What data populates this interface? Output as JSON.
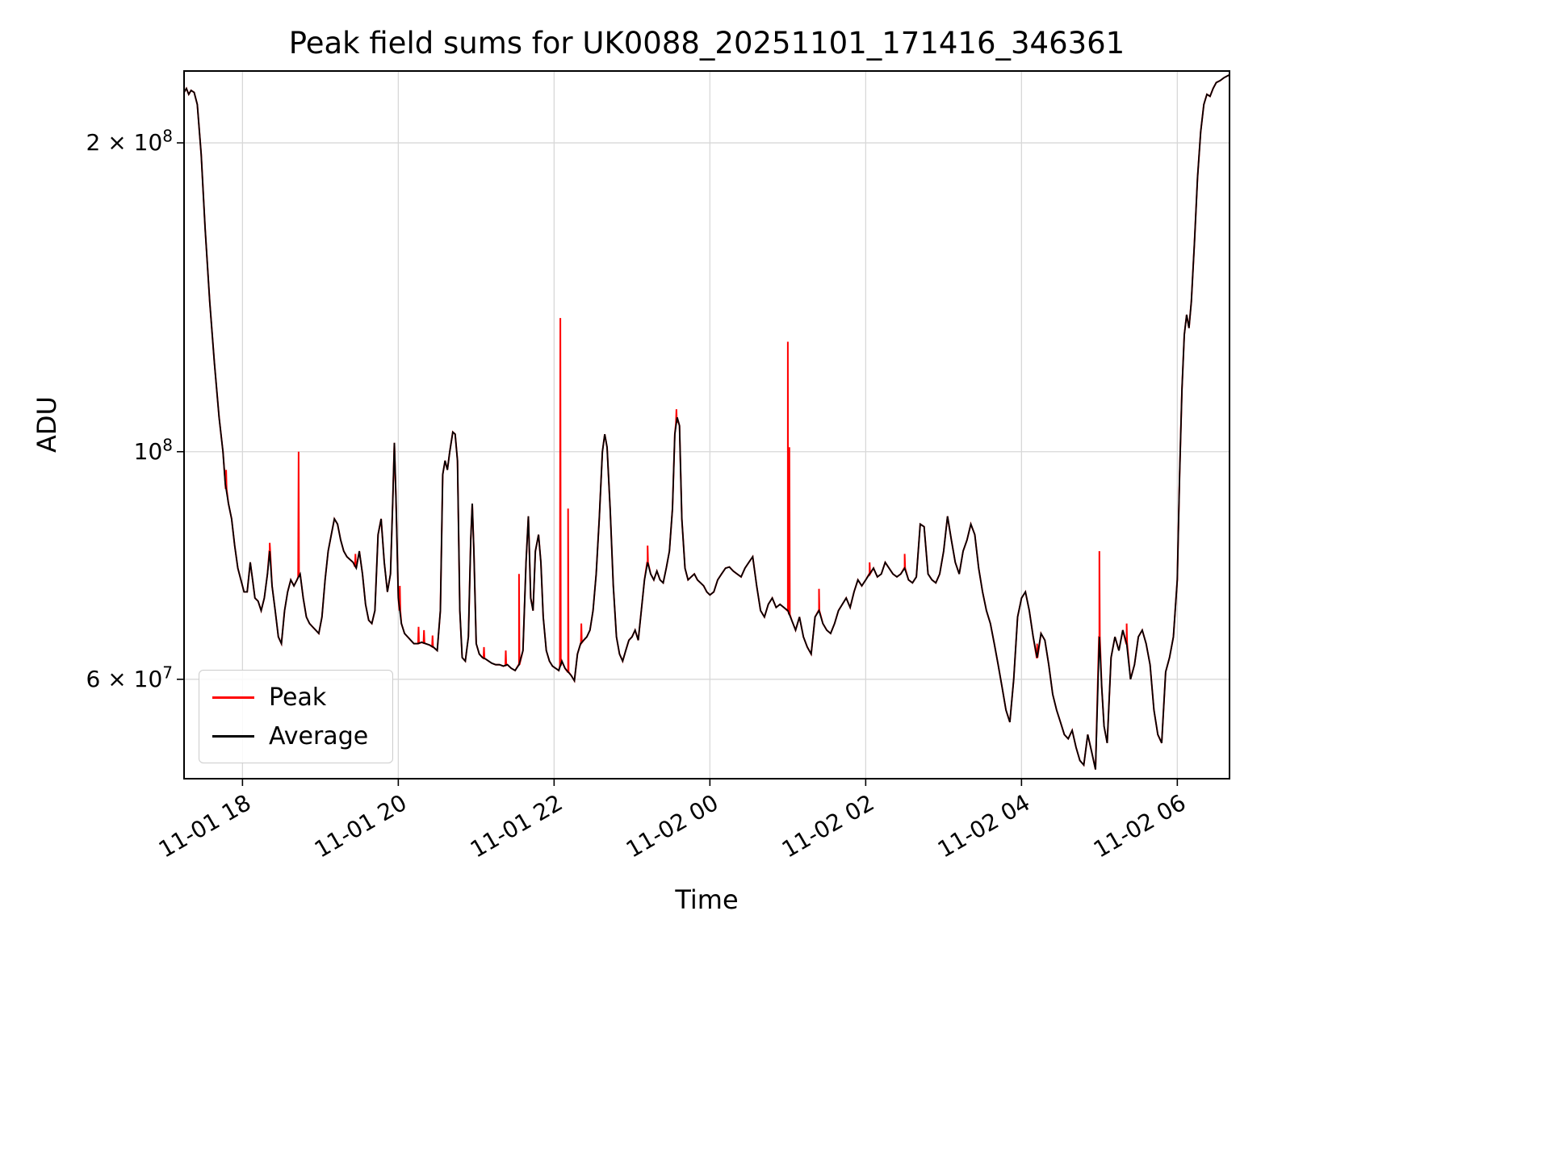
{
  "chart_data": {
    "type": "line",
    "title": "Peak field sums for UK0088_20251101_171416_346361",
    "xlabel": "Time",
    "ylabel": "ADU",
    "yscale": "log",
    "grid": true,
    "legend_position": "lower left",
    "value_scale": 10000000,
    "ylim": [
      4.8,
      23.5
    ],
    "xlim_hours": [
      17.25,
      30.67
    ],
    "colors": {
      "peak": "#ff0000",
      "average": "#000000",
      "grid": "#d8d8d8",
      "axis": "#000000"
    },
    "x_ticks": [
      {
        "hour": 18,
        "label": "11-01 18"
      },
      {
        "hour": 20,
        "label": "11-01 20"
      },
      {
        "hour": 22,
        "label": "11-01 22"
      },
      {
        "hour": 24,
        "label": "11-02 00"
      },
      {
        "hour": 26,
        "label": "11-02 02"
      },
      {
        "hour": 28,
        "label": "11-02 04"
      },
      {
        "hour": 30,
        "label": "11-02 06"
      }
    ],
    "y_ticks": [
      {
        "v": 20,
        "mantissa": "2 × 10",
        "exp": "8"
      },
      {
        "v": 10,
        "mantissa": "10",
        "exp": "8"
      },
      {
        "v": 6,
        "mantissa": "6 × 10",
        "exp": "7"
      }
    ],
    "legend": [
      {
        "name": "Peak",
        "color": "#ff0000"
      },
      {
        "name": "Average",
        "color": "#000000"
      }
    ],
    "series": {
      "average": [
        [
          17.25,
          22.4
        ],
        [
          17.28,
          22.6
        ],
        [
          17.31,
          22.3
        ],
        [
          17.34,
          22.5
        ],
        [
          17.38,
          22.4
        ],
        [
          17.42,
          21.8
        ],
        [
          17.47,
          19.5
        ],
        [
          17.52,
          16.5
        ],
        [
          17.58,
          14.0
        ],
        [
          17.64,
          12.2
        ],
        [
          17.7,
          10.8
        ],
        [
          17.75,
          10.0
        ],
        [
          17.78,
          9.3
        ],
        [
          17.82,
          8.9
        ],
        [
          17.86,
          8.6
        ],
        [
          17.9,
          8.1
        ],
        [
          17.94,
          7.7
        ],
        [
          17.98,
          7.5
        ],
        [
          18.02,
          7.3
        ],
        [
          18.06,
          7.3
        ],
        [
          18.1,
          7.8
        ],
        [
          18.13,
          7.5
        ],
        [
          18.16,
          7.2
        ],
        [
          18.2,
          7.15
        ],
        [
          18.24,
          7.0
        ],
        [
          18.28,
          7.2
        ],
        [
          18.32,
          7.6
        ],
        [
          18.35,
          8.0
        ],
        [
          18.38,
          7.4
        ],
        [
          18.42,
          7.0
        ],
        [
          18.46,
          6.6
        ],
        [
          18.5,
          6.5
        ],
        [
          18.54,
          7.0
        ],
        [
          18.58,
          7.3
        ],
        [
          18.62,
          7.5
        ],
        [
          18.66,
          7.4
        ],
        [
          18.7,
          7.5
        ],
        [
          18.74,
          7.6
        ],
        [
          18.78,
          7.2
        ],
        [
          18.82,
          6.9
        ],
        [
          18.86,
          6.8
        ],
        [
          18.9,
          6.75
        ],
        [
          18.94,
          6.7
        ],
        [
          18.98,
          6.65
        ],
        [
          19.02,
          6.9
        ],
        [
          19.06,
          7.5
        ],
        [
          19.1,
          8.0
        ],
        [
          19.14,
          8.3
        ],
        [
          19.18,
          8.6
        ],
        [
          19.22,
          8.5
        ],
        [
          19.26,
          8.2
        ],
        [
          19.3,
          8.0
        ],
        [
          19.34,
          7.9
        ],
        [
          19.38,
          7.85
        ],
        [
          19.42,
          7.8
        ],
        [
          19.46,
          7.7
        ],
        [
          19.5,
          8.0
        ],
        [
          19.54,
          7.6
        ],
        [
          19.58,
          7.1
        ],
        [
          19.62,
          6.85
        ],
        [
          19.66,
          6.8
        ],
        [
          19.7,
          7.0
        ],
        [
          19.74,
          8.3
        ],
        [
          19.78,
          8.6
        ],
        [
          19.82,
          7.8
        ],
        [
          19.86,
          7.3
        ],
        [
          19.9,
          7.6
        ],
        [
          19.93,
          9.0
        ],
        [
          19.95,
          10.2
        ],
        [
          19.97,
          9.0
        ],
        [
          20.0,
          7.2
        ],
        [
          20.04,
          6.8
        ],
        [
          20.08,
          6.65
        ],
        [
          20.12,
          6.6
        ],
        [
          20.16,
          6.55
        ],
        [
          20.2,
          6.5
        ],
        [
          20.25,
          6.5
        ],
        [
          20.3,
          6.52
        ],
        [
          20.35,
          6.5
        ],
        [
          20.4,
          6.48
        ],
        [
          20.45,
          6.45
        ],
        [
          20.5,
          6.4
        ],
        [
          20.54,
          7.0
        ],
        [
          20.57,
          9.5
        ],
        [
          20.6,
          9.8
        ],
        [
          20.63,
          9.6
        ],
        [
          20.66,
          10.0
        ],
        [
          20.7,
          10.45
        ],
        [
          20.73,
          10.4
        ],
        [
          20.76,
          9.8
        ],
        [
          20.79,
          7.0
        ],
        [
          20.82,
          6.3
        ],
        [
          20.86,
          6.25
        ],
        [
          20.9,
          6.6
        ],
        [
          20.93,
          8.2
        ],
        [
          20.95,
          8.9
        ],
        [
          20.97,
          8.0
        ],
        [
          21.0,
          6.5
        ],
        [
          21.04,
          6.35
        ],
        [
          21.08,
          6.3
        ],
        [
          21.12,
          6.28
        ],
        [
          21.16,
          6.25
        ],
        [
          21.2,
          6.22
        ],
        [
          21.25,
          6.2
        ],
        [
          21.3,
          6.2
        ],
        [
          21.35,
          6.18
        ],
        [
          21.4,
          6.2
        ],
        [
          21.45,
          6.15
        ],
        [
          21.5,
          6.12
        ],
        [
          21.55,
          6.2
        ],
        [
          21.6,
          6.4
        ],
        [
          21.64,
          7.8
        ],
        [
          21.67,
          8.65
        ],
        [
          21.7,
          7.2
        ],
        [
          21.73,
          7.0
        ],
        [
          21.76,
          8.0
        ],
        [
          21.8,
          8.3
        ],
        [
          21.83,
          7.8
        ],
        [
          21.86,
          6.9
        ],
        [
          21.9,
          6.4
        ],
        [
          21.94,
          6.25
        ],
        [
          21.98,
          6.18
        ],
        [
          22.02,
          6.15
        ],
        [
          22.06,
          6.12
        ],
        [
          22.1,
          6.25
        ],
        [
          22.14,
          6.15
        ],
        [
          22.18,
          6.1
        ],
        [
          22.22,
          6.05
        ],
        [
          22.26,
          5.98
        ],
        [
          22.3,
          6.35
        ],
        [
          22.34,
          6.5
        ],
        [
          22.38,
          6.55
        ],
        [
          22.42,
          6.6
        ],
        [
          22.46,
          6.7
        ],
        [
          22.5,
          7.0
        ],
        [
          22.54,
          7.6
        ],
        [
          22.58,
          8.6
        ],
        [
          22.62,
          10.0
        ],
        [
          22.65,
          10.4
        ],
        [
          22.68,
          10.1
        ],
        [
          22.72,
          8.8
        ],
        [
          22.76,
          7.4
        ],
        [
          22.8,
          6.6
        ],
        [
          22.84,
          6.35
        ],
        [
          22.88,
          6.25
        ],
        [
          22.92,
          6.4
        ],
        [
          22.96,
          6.55
        ],
        [
          23.0,
          6.6
        ],
        [
          23.04,
          6.7
        ],
        [
          23.08,
          6.55
        ],
        [
          23.12,
          7.0
        ],
        [
          23.16,
          7.5
        ],
        [
          23.2,
          7.8
        ],
        [
          23.24,
          7.6
        ],
        [
          23.28,
          7.5
        ],
        [
          23.32,
          7.65
        ],
        [
          23.36,
          7.5
        ],
        [
          23.4,
          7.45
        ],
        [
          23.44,
          7.7
        ],
        [
          23.48,
          8.0
        ],
        [
          23.52,
          8.8
        ],
        [
          23.55,
          10.4
        ],
        [
          23.58,
          10.8
        ],
        [
          23.61,
          10.6
        ],
        [
          23.64,
          8.6
        ],
        [
          23.68,
          7.7
        ],
        [
          23.72,
          7.5
        ],
        [
          23.76,
          7.55
        ],
        [
          23.8,
          7.6
        ],
        [
          23.84,
          7.5
        ],
        [
          23.88,
          7.45
        ],
        [
          23.92,
          7.4
        ],
        [
          23.96,
          7.3
        ],
        [
          24.0,
          7.25
        ],
        [
          24.05,
          7.3
        ],
        [
          24.1,
          7.5
        ],
        [
          24.15,
          7.6
        ],
        [
          24.2,
          7.7
        ],
        [
          24.25,
          7.72
        ],
        [
          24.3,
          7.65
        ],
        [
          24.35,
          7.6
        ],
        [
          24.4,
          7.55
        ],
        [
          24.45,
          7.7
        ],
        [
          24.5,
          7.8
        ],
        [
          24.55,
          7.9
        ],
        [
          24.6,
          7.4
        ],
        [
          24.65,
          7.0
        ],
        [
          24.7,
          6.9
        ],
        [
          24.75,
          7.1
        ],
        [
          24.8,
          7.2
        ],
        [
          24.85,
          7.05
        ],
        [
          24.9,
          7.1
        ],
        [
          24.95,
          7.05
        ],
        [
          25.0,
          7.0
        ],
        [
          25.05,
          6.85
        ],
        [
          25.1,
          6.7
        ],
        [
          25.15,
          6.9
        ],
        [
          25.2,
          6.6
        ],
        [
          25.25,
          6.45
        ],
        [
          25.3,
          6.35
        ],
        [
          25.35,
          6.9
        ],
        [
          25.4,
          7.0
        ],
        [
          25.45,
          6.8
        ],
        [
          25.5,
          6.7
        ],
        [
          25.55,
          6.65
        ],
        [
          25.6,
          6.8
        ],
        [
          25.65,
          7.0
        ],
        [
          25.7,
          7.1
        ],
        [
          25.75,
          7.2
        ],
        [
          25.8,
          7.05
        ],
        [
          25.85,
          7.3
        ],
        [
          25.9,
          7.5
        ],
        [
          25.95,
          7.4
        ],
        [
          26.0,
          7.5
        ],
        [
          26.05,
          7.6
        ],
        [
          26.1,
          7.7
        ],
        [
          26.15,
          7.55
        ],
        [
          26.2,
          7.6
        ],
        [
          26.25,
          7.8
        ],
        [
          26.3,
          7.7
        ],
        [
          26.35,
          7.6
        ],
        [
          26.4,
          7.55
        ],
        [
          26.45,
          7.6
        ],
        [
          26.5,
          7.7
        ],
        [
          26.55,
          7.5
        ],
        [
          26.6,
          7.45
        ],
        [
          26.65,
          7.55
        ],
        [
          26.7,
          8.5
        ],
        [
          26.75,
          8.45
        ],
        [
          26.8,
          7.6
        ],
        [
          26.85,
          7.5
        ],
        [
          26.9,
          7.45
        ],
        [
          26.95,
          7.6
        ],
        [
          27.0,
          8.0
        ],
        [
          27.05,
          8.65
        ],
        [
          27.1,
          8.2
        ],
        [
          27.15,
          7.8
        ],
        [
          27.2,
          7.6
        ],
        [
          27.25,
          8.0
        ],
        [
          27.3,
          8.2
        ],
        [
          27.35,
          8.5
        ],
        [
          27.4,
          8.3
        ],
        [
          27.45,
          7.7
        ],
        [
          27.5,
          7.3
        ],
        [
          27.55,
          7.0
        ],
        [
          27.6,
          6.8
        ],
        [
          27.65,
          6.5
        ],
        [
          27.7,
          6.2
        ],
        [
          27.75,
          5.9
        ],
        [
          27.8,
          5.6
        ],
        [
          27.85,
          5.45
        ],
        [
          27.9,
          6.0
        ],
        [
          27.95,
          6.9
        ],
        [
          28.0,
          7.2
        ],
        [
          28.05,
          7.3
        ],
        [
          28.1,
          7.0
        ],
        [
          28.15,
          6.6
        ],
        [
          28.2,
          6.3
        ],
        [
          28.25,
          6.65
        ],
        [
          28.3,
          6.55
        ],
        [
          28.35,
          6.2
        ],
        [
          28.4,
          5.8
        ],
        [
          28.45,
          5.6
        ],
        [
          28.5,
          5.45
        ],
        [
          28.55,
          5.3
        ],
        [
          28.6,
          5.25
        ],
        [
          28.65,
          5.35
        ],
        [
          28.7,
          5.15
        ],
        [
          28.75,
          5.0
        ],
        [
          28.8,
          4.95
        ],
        [
          28.85,
          5.3
        ],
        [
          28.9,
          5.1
        ],
        [
          28.95,
          4.9
        ],
        [
          29.0,
          6.6
        ],
        [
          29.03,
          5.9
        ],
        [
          29.06,
          5.4
        ],
        [
          29.1,
          5.2
        ],
        [
          29.15,
          6.3
        ],
        [
          29.2,
          6.6
        ],
        [
          29.25,
          6.4
        ],
        [
          29.3,
          6.7
        ],
        [
          29.35,
          6.5
        ],
        [
          29.4,
          6.0
        ],
        [
          29.45,
          6.2
        ],
        [
          29.5,
          6.6
        ],
        [
          29.55,
          6.7
        ],
        [
          29.6,
          6.5
        ],
        [
          29.65,
          6.2
        ],
        [
          29.7,
          5.6
        ],
        [
          29.75,
          5.3
        ],
        [
          29.8,
          5.2
        ],
        [
          29.85,
          6.1
        ],
        [
          29.9,
          6.3
        ],
        [
          29.95,
          6.6
        ],
        [
          30.0,
          7.5
        ],
        [
          30.03,
          9.5
        ],
        [
          30.06,
          11.5
        ],
        [
          30.09,
          13.0
        ],
        [
          30.12,
          13.6
        ],
        [
          30.15,
          13.2
        ],
        [
          30.18,
          14.0
        ],
        [
          30.22,
          16.0
        ],
        [
          30.26,
          18.5
        ],
        [
          30.3,
          20.5
        ],
        [
          30.34,
          21.8
        ],
        [
          30.38,
          22.3
        ],
        [
          30.42,
          22.2
        ],
        [
          30.46,
          22.6
        ],
        [
          30.5,
          22.9
        ],
        [
          30.55,
          23.0
        ],
        [
          30.6,
          23.15
        ],
        [
          30.67,
          23.3
        ]
      ],
      "peak_spikes": [
        [
          17.79,
          9.6
        ],
        [
          18.35,
          8.15
        ],
        [
          18.72,
          10.0
        ],
        [
          19.45,
          7.95
        ],
        [
          20.02,
          7.4
        ],
        [
          20.26,
          6.75
        ],
        [
          20.33,
          6.7
        ],
        [
          20.44,
          6.62
        ],
        [
          21.1,
          6.45
        ],
        [
          21.38,
          6.4
        ],
        [
          21.55,
          7.6
        ],
        [
          22.08,
          13.5
        ],
        [
          22.18,
          8.8
        ],
        [
          22.35,
          6.8
        ],
        [
          23.2,
          8.1
        ],
        [
          23.57,
          11.0
        ],
        [
          25.0,
          12.8
        ],
        [
          25.02,
          10.1
        ],
        [
          25.4,
          7.35
        ],
        [
          26.05,
          7.8
        ],
        [
          26.5,
          7.95
        ],
        [
          28.2,
          6.5
        ],
        [
          29.0,
          8.0
        ],
        [
          29.35,
          6.8
        ]
      ]
    }
  }
}
